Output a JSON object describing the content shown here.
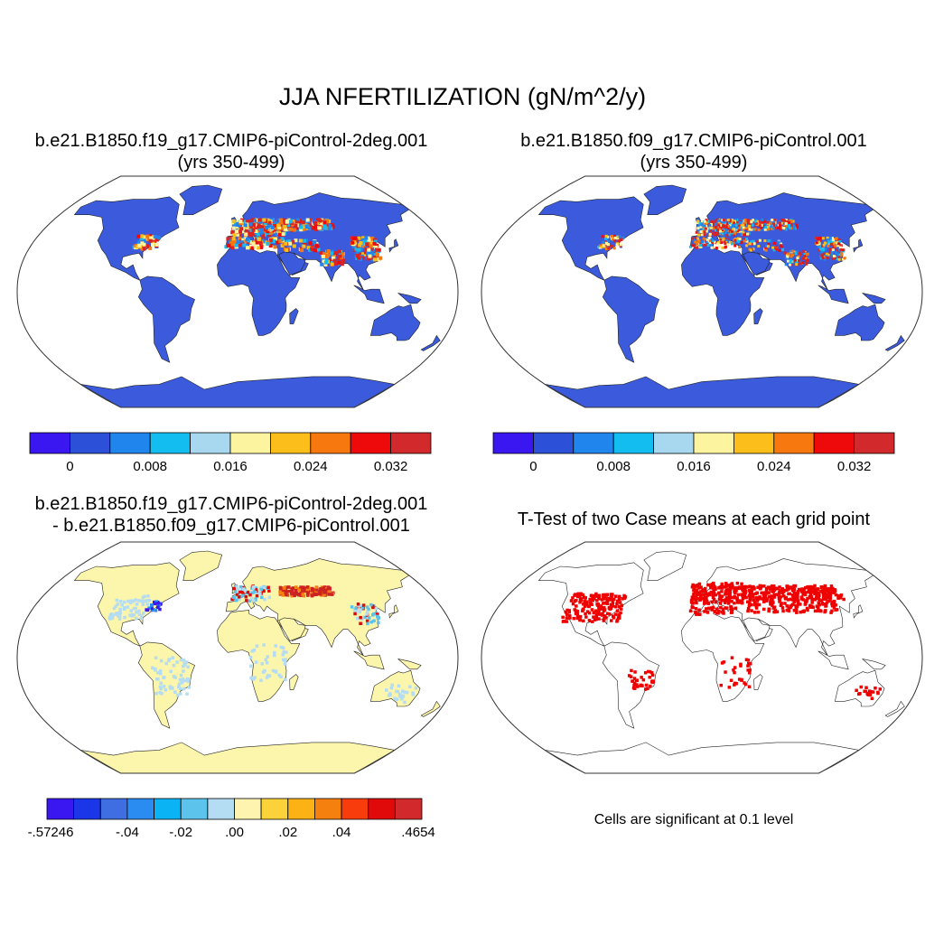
{
  "title": "JJA NFERTILIZATION (gN/m^2/y)",
  "panels": [
    {
      "title_line1": "b.e21.B1850.f19_g17.CMIP6-piControl-2deg.001",
      "title_line2": "(yrs 350-499)"
    },
    {
      "title_line1": "b.e21.B1850.f09_g17.CMIP6-piControl.001",
      "title_line2": "(yrs 350-499)"
    },
    {
      "title_line1": "b.e21.B1850.f19_g17.CMIP6-piControl-2deg.001",
      "title_line2": "- b.e21.B1850.f09_g17.CMIP6-piControl.001"
    },
    {
      "title_line1": "T-Test of two Case means at each grid point"
    }
  ],
  "colorbar_abs": {
    "colors": [
      "#3a16f0",
      "#2d50d8",
      "#2185ee",
      "#14bdf0",
      "#a8d8f0",
      "#fdf4a0",
      "#fcbe1a",
      "#f6780e",
      "#ee0a0a",
      "#d22a2c"
    ],
    "ticks": [
      "0",
      "0.008",
      "0.016",
      "0.024",
      "0.032"
    ]
  },
  "colorbar_diff": {
    "colors": [
      "#3a16f0",
      "#1a36e8",
      "#3e6ee2",
      "#2a8cf0",
      "#0ab4f4",
      "#5cc4ec",
      "#b4dcf2",
      "#fef4b0",
      "#fcd23a",
      "#fcb214",
      "#f6800e",
      "#f83c0c",
      "#e00a0a",
      "#d22a2c"
    ],
    "ticks": [
      "-.57246",
      "-.04",
      "-.02",
      ".00",
      ".02",
      ".04",
      ".4654"
    ]
  },
  "significance_note": "Cells are significant at 0.1 level",
  "map_colors": {
    "ocean": "#ffffff",
    "land_abs": "#3b5bdc",
    "land_diff": "#fcf5ac",
    "signif": "#ee0000",
    "coast": "#222222",
    "hot_abs": "#dd2222",
    "hot_diff": "#cc2222",
    "neg_diff": "#3a16f0",
    "lightblue": "#b4dcf2"
  }
}
